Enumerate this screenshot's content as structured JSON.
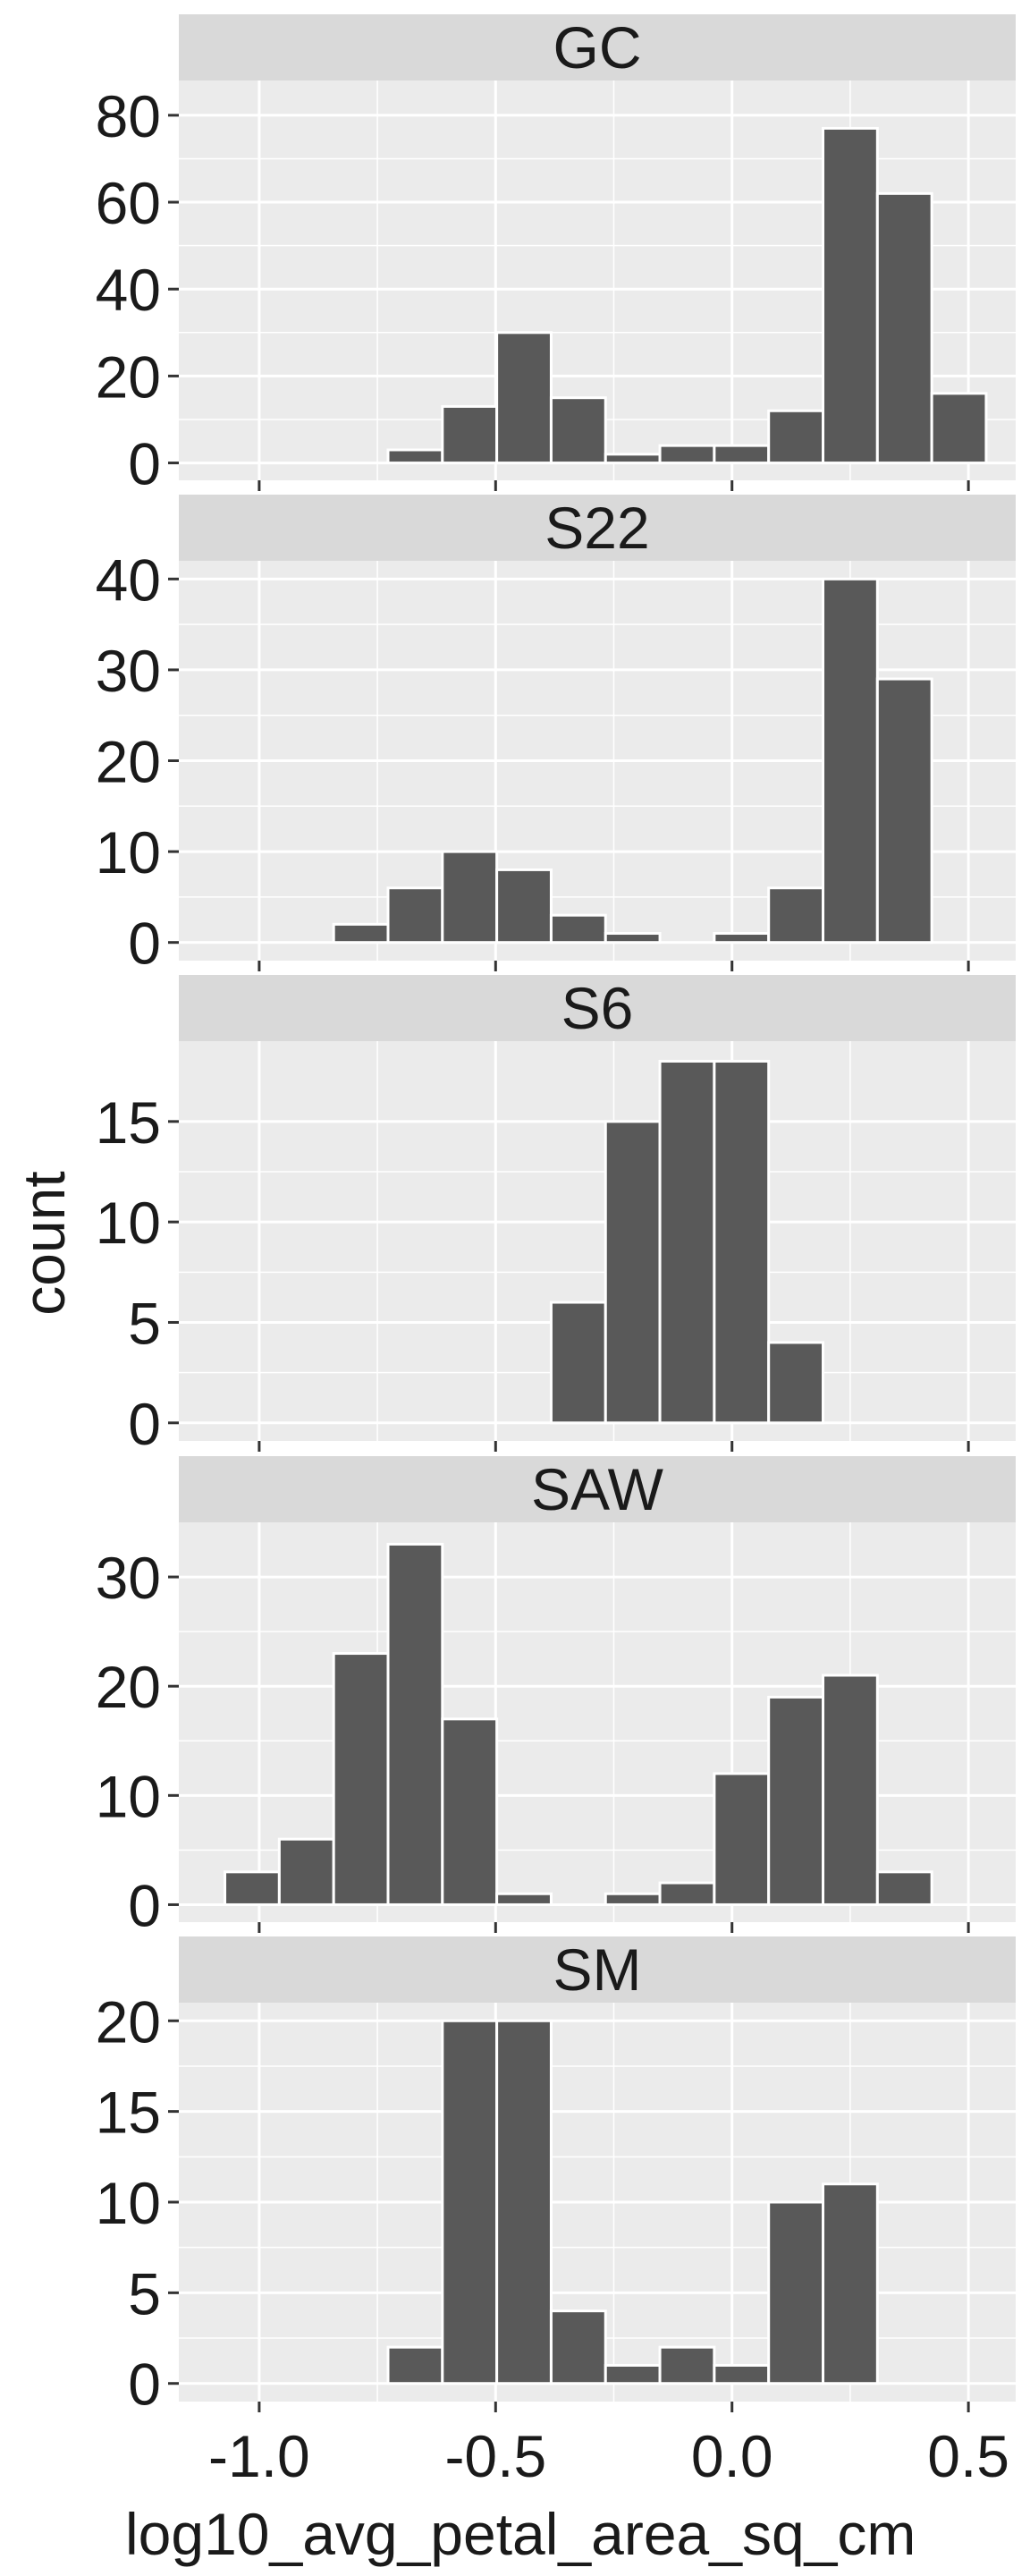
{
  "chart_data": {
    "type": "bar",
    "subtype": "faceted-histogram",
    "xlabel": "log10_avg_petal_area_sq_cm",
    "ylabel": "count",
    "xlim": [
      -1.17,
      0.6
    ],
    "x_ticks": [
      -1.0,
      -0.5,
      0.0,
      0.5
    ],
    "x_tick_labels": [
      "-1.0",
      "-0.5",
      "0.0",
      "0.5"
    ],
    "bin_width": 0.115,
    "bar_color": "#595959",
    "panel_bg": "#ebebeb",
    "strip_bg": "#d9d9d9",
    "grid": true,
    "facets": [
      {
        "name": "GC",
        "ylim": [
          -4,
          88
        ],
        "y_ticks": [
          0,
          20,
          40,
          60,
          80
        ],
        "bins": [
          {
            "x": -0.67,
            "count": 3
          },
          {
            "x": -0.555,
            "count": 13
          },
          {
            "x": -0.44,
            "count": 30
          },
          {
            "x": -0.325,
            "count": 15
          },
          {
            "x": -0.21,
            "count": 2
          },
          {
            "x": -0.095,
            "count": 4
          },
          {
            "x": 0.02,
            "count": 4
          },
          {
            "x": 0.135,
            "count": 12
          },
          {
            "x": 0.25,
            "count": 77
          },
          {
            "x": 0.365,
            "count": 62
          },
          {
            "x": 0.48,
            "count": 16
          }
        ]
      },
      {
        "name": "S22",
        "ylim": [
          -2,
          42
        ],
        "y_ticks": [
          0,
          10,
          20,
          30,
          40
        ],
        "bins": [
          {
            "x": -0.785,
            "count": 2
          },
          {
            "x": -0.67,
            "count": 6
          },
          {
            "x": -0.555,
            "count": 10
          },
          {
            "x": -0.44,
            "count": 8
          },
          {
            "x": -0.325,
            "count": 3
          },
          {
            "x": -0.21,
            "count": 1
          },
          {
            "x": 0.02,
            "count": 1
          },
          {
            "x": 0.135,
            "count": 6
          },
          {
            "x": 0.25,
            "count": 40
          },
          {
            "x": 0.365,
            "count": 29
          }
        ]
      },
      {
        "name": "S6",
        "ylim": [
          -0.9,
          19
        ],
        "y_ticks": [
          0,
          5,
          10,
          15
        ],
        "bins": [
          {
            "x": -0.325,
            "count": 6
          },
          {
            "x": -0.21,
            "count": 15
          },
          {
            "x": -0.095,
            "count": 18
          },
          {
            "x": 0.02,
            "count": 18
          },
          {
            "x": 0.135,
            "count": 4
          }
        ]
      },
      {
        "name": "SAW",
        "ylim": [
          -1.6,
          35
        ],
        "y_ticks": [
          0,
          10,
          20,
          30
        ],
        "bins": [
          {
            "x": -1.015,
            "count": 3
          },
          {
            "x": -0.9,
            "count": 6
          },
          {
            "x": -0.785,
            "count": 23
          },
          {
            "x": -0.67,
            "count": 33
          },
          {
            "x": -0.555,
            "count": 17
          },
          {
            "x": -0.44,
            "count": 1
          },
          {
            "x": -0.21,
            "count": 1
          },
          {
            "x": -0.095,
            "count": 2
          },
          {
            "x": 0.02,
            "count": 12
          },
          {
            "x": 0.135,
            "count": 19
          },
          {
            "x": 0.25,
            "count": 21
          },
          {
            "x": 0.365,
            "count": 3
          }
        ]
      },
      {
        "name": "SM",
        "ylim": [
          -1,
          21
        ],
        "y_ticks": [
          0,
          5,
          10,
          15,
          20
        ],
        "bins": [
          {
            "x": -0.67,
            "count": 2
          },
          {
            "x": -0.555,
            "count": 20
          },
          {
            "x": -0.44,
            "count": 20
          },
          {
            "x": -0.325,
            "count": 4
          },
          {
            "x": -0.21,
            "count": 1
          },
          {
            "x": -0.095,
            "count": 2
          },
          {
            "x": 0.02,
            "count": 1
          },
          {
            "x": 0.135,
            "count": 10
          },
          {
            "x": 0.25,
            "count": 11
          }
        ]
      }
    ]
  }
}
